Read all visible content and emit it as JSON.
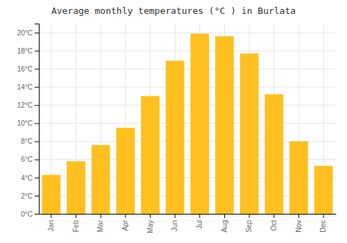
{
  "chart_data": {
    "type": "bar",
    "title": "Average monthly temperatures (°C ) in Burlata",
    "categories": [
      "Jan",
      "Feb",
      "Mar",
      "Apr",
      "May",
      "Jun",
      "Jul",
      "Aug",
      "Sep",
      "Oct",
      "Nov",
      "Dec"
    ],
    "values": [
      4.3,
      5.8,
      7.6,
      9.5,
      13.0,
      16.9,
      19.9,
      19.6,
      17.7,
      13.2,
      8.0,
      5.3
    ],
    "color": "#FFC020",
    "ylim": [
      0,
      21
    ],
    "yticks": [
      {
        "value": 0,
        "label": "0°C"
      },
      {
        "value": 2,
        "label": "2°C"
      },
      {
        "value": 4,
        "label": "4°C"
      },
      {
        "value": 6,
        "label": "6°C"
      },
      {
        "value": 8,
        "label": "8°C"
      },
      {
        "value": 10,
        "label": "10°C"
      },
      {
        "value": 12,
        "label": "12°C"
      },
      {
        "value": 14,
        "label": "14°C"
      },
      {
        "value": 16,
        "label": "16°C"
      },
      {
        "value": 18,
        "label": "18°C"
      },
      {
        "value": 20,
        "label": "20°C"
      }
    ],
    "grid": true
  }
}
